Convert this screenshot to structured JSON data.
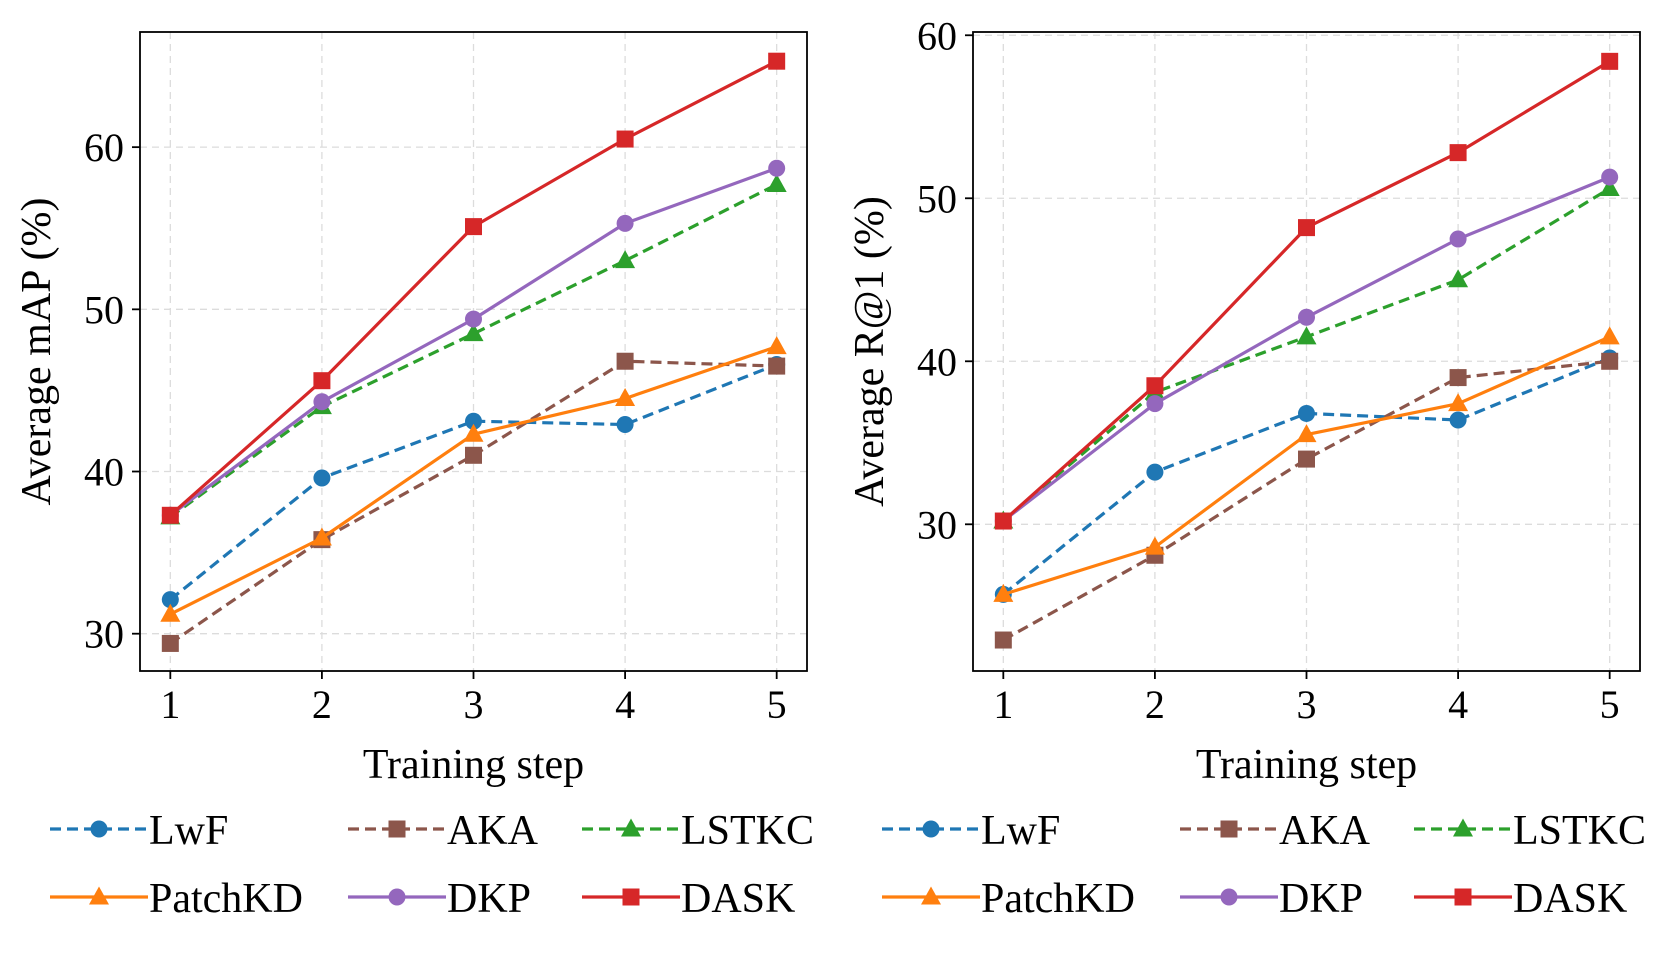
{
  "colors": {
    "LwF": "#1f77b4",
    "AKA": "#8c564b",
    "LSTKC": "#2ca02c",
    "PatchKD": "#ff7f0e",
    "DKP": "#9467bd",
    "DASK": "#d62728",
    "grid": "#dcdcdc"
  },
  "chart_data": [
    {
      "type": "line",
      "title": "",
      "xlabel": "Training step",
      "ylabel": "Average mAP (%)",
      "x": [
        1,
        2,
        3,
        4,
        5
      ],
      "xticks": [
        "1",
        "2",
        "3",
        "4",
        "5"
      ],
      "yticks": [
        "30",
        "40",
        "50",
        "60"
      ],
      "xlim": [
        0.8,
        5.2
      ],
      "ylim": [
        27.7,
        67.1
      ],
      "grid": true,
      "legend": "bottom",
      "series": [
        {
          "name": "LwF",
          "values": [
            32.1,
            39.6,
            43.1,
            42.9,
            46.6
          ],
          "linestyle": "dashed",
          "marker": "circle"
        },
        {
          "name": "AKA",
          "values": [
            29.4,
            35.8,
            41.0,
            46.8,
            46.5
          ],
          "linestyle": "dashed",
          "marker": "square"
        },
        {
          "name": "LSTKC",
          "values": [
            37.2,
            44.0,
            48.5,
            53.0,
            57.7
          ],
          "linestyle": "dashed",
          "marker": "triangle"
        },
        {
          "name": "PatchKD",
          "values": [
            31.2,
            35.9,
            42.3,
            44.5,
            47.7
          ],
          "linestyle": "solid",
          "marker": "triangle"
        },
        {
          "name": "DKP",
          "values": [
            37.3,
            44.3,
            49.4,
            55.3,
            58.7
          ],
          "linestyle": "solid",
          "marker": "circle"
        },
        {
          "name": "DASK",
          "values": [
            37.3,
            45.6,
            55.1,
            60.5,
            65.3
          ],
          "linestyle": "solid",
          "marker": "square"
        }
      ]
    },
    {
      "type": "line",
      "title": "",
      "xlabel": "Training step",
      "ylabel": "Average R@1 (%)",
      "x": [
        1,
        2,
        3,
        4,
        5
      ],
      "xticks": [
        "1",
        "2",
        "3",
        "4",
        "5"
      ],
      "yticks": [
        "30",
        "40",
        "50",
        "60"
      ],
      "xlim": [
        0.8,
        5.2
      ],
      "ylim": [
        21.0,
        60.2
      ],
      "grid": true,
      "legend": "bottom",
      "series": [
        {
          "name": "LwF",
          "values": [
            25.7,
            33.2,
            36.8,
            36.4,
            40.2
          ],
          "linestyle": "dashed",
          "marker": "circle"
        },
        {
          "name": "AKA",
          "values": [
            22.9,
            28.1,
            34.0,
            39.0,
            40.0
          ],
          "linestyle": "dashed",
          "marker": "square"
        },
        {
          "name": "LSTKC",
          "values": [
            30.2,
            38.1,
            41.5,
            45.0,
            50.6
          ],
          "linestyle": "dashed",
          "marker": "triangle"
        },
        {
          "name": "PatchKD",
          "values": [
            25.7,
            28.6,
            35.5,
            37.4,
            41.5
          ],
          "linestyle": "solid",
          "marker": "triangle"
        },
        {
          "name": "DKP",
          "values": [
            30.2,
            37.4,
            42.7,
            47.5,
            51.3
          ],
          "linestyle": "solid",
          "marker": "circle"
        },
        {
          "name": "DASK",
          "values": [
            30.2,
            38.5,
            48.2,
            52.8,
            58.4
          ],
          "linestyle": "solid",
          "marker": "square"
        }
      ]
    }
  ]
}
